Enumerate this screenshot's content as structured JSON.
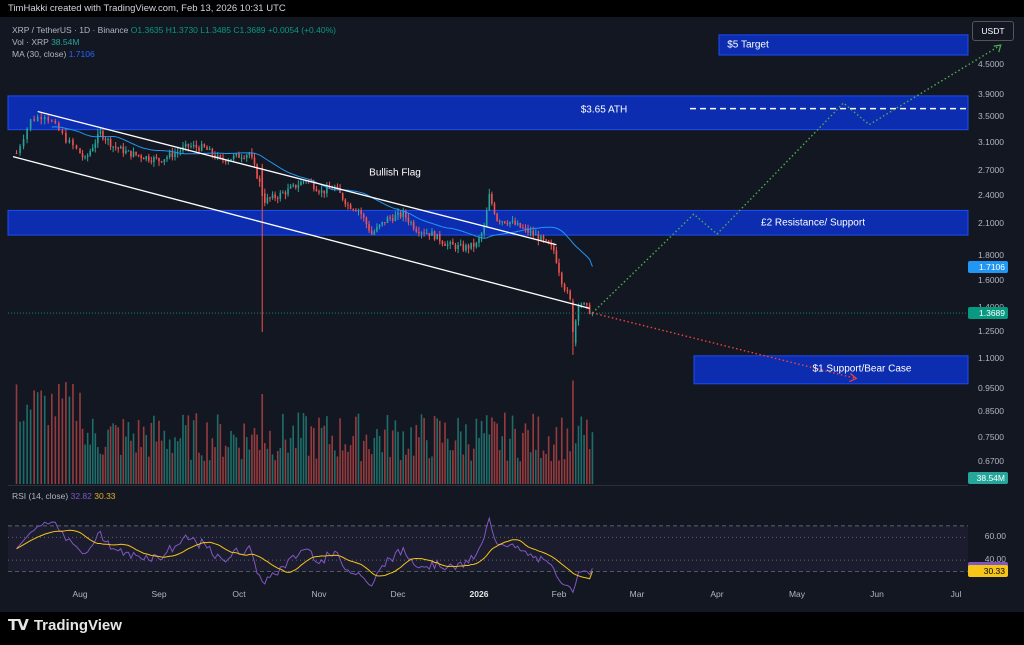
{
  "header": {
    "creator_line": "TimHakki created with TradingView.com, Feb 13, 2026 10:31 UTC"
  },
  "legend": {
    "symbol": "XRP / TetherUS · 1D · Binance",
    "open": "O1.3635",
    "high": "H1.3730",
    "low": "L1.3485",
    "close": "C1.3689",
    "change": "+0.0054 (+0.40%)",
    "vol_label": "Vol · XRP",
    "vol_value": "38.54M",
    "ma_label": "MA (30, close)",
    "ma_value": "1.7106",
    "rsi_label": "RSI (14, close)",
    "rsi_value": "32.82",
    "rsi_ma_value": "30.33"
  },
  "currency_button": "USDT",
  "price_axis": {
    "ticks": [
      "4.5000",
      "3.9000",
      "3.5000",
      "3.1000",
      "2.7000",
      "2.4000",
      "2.1000",
      "1.8000",
      "1.6000",
      "1.4000",
      "1.2500",
      "1.1000",
      "0.9500",
      "0.8500",
      "0.7500",
      "0.6700"
    ],
    "badges": {
      "ma": {
        "value": "1.7106",
        "color": "#2196f3"
      },
      "last": {
        "value": "1.3689",
        "color": "#089981"
      },
      "volume": {
        "value": "38.54M",
        "color": "#26a69a"
      },
      "rsi": {
        "value": "32.82",
        "color": "#7e57c2"
      },
      "rsi_ma": {
        "value": "30.33",
        "color": "#f5c518"
      }
    }
  },
  "rsi_axis": {
    "ticks": [
      "60.00",
      "40.00"
    ]
  },
  "time_axis": {
    "labels": [
      "Aug",
      "Sep",
      "Oct",
      "Nov",
      "Dec",
      "2026",
      "Feb",
      "Mar",
      "Apr",
      "May",
      "Jun",
      "Jul"
    ],
    "bold": "2026"
  },
  "annotations": {
    "target": "$5 Target",
    "ath": "$3.65 ATH",
    "flag": "Bullish Flag",
    "resistance": "£2 Resistance/ Support",
    "support": "$1 Support/Bear Case"
  },
  "colors": {
    "up": "#26a69a",
    "down": "#ef5350",
    "zone": "#0d2fb8",
    "ma": "#2196f3",
    "bull_path": "#4caf50",
    "bear_path": "#f44336",
    "rsi": "#7e57c2",
    "rsi_ma": "#f5c518"
  },
  "footer": {
    "brand": "TradingView"
  },
  "chart_data": {
    "type": "candlestick",
    "symbol": "XRP/USDT",
    "timeframe": "1D",
    "period": [
      "2025-07-14",
      "2026-02-13"
    ],
    "price_range": [
      0.62,
      5.2
    ],
    "log_scale": true,
    "ma_period": 30,
    "last_close": 1.3689,
    "ma_last": 1.7106,
    "rsi_last": 32.82,
    "rsi_ma_last": 30.33,
    "volume_last": "38.54M",
    "ohlc_last": {
      "open": 1.3635,
      "high": 1.373,
      "low": 1.3485,
      "close": 1.3689
    },
    "key_levels": {
      "target": 5.0,
      "ath": 3.65,
      "resistance_support": 2.0,
      "bear_case_support": 1.0
    },
    "close_path": [
      [
        "2025-07-14",
        2.95
      ],
      [
        "2025-07-18",
        3.45
      ],
      [
        "2025-07-22",
        3.55
      ],
      [
        "2025-07-28",
        3.15
      ],
      [
        "2025-08-03",
        2.85
      ],
      [
        "2025-08-09",
        3.25
      ],
      [
        "2025-08-14",
        3.05
      ],
      [
        "2025-08-20",
        2.95
      ],
      [
        "2025-08-26",
        2.9
      ],
      [
        "2025-09-01",
        2.85
      ],
      [
        "2025-09-07",
        2.95
      ],
      [
        "2025-09-12",
        3.05
      ],
      [
        "2025-09-18",
        3.02
      ],
      [
        "2025-09-24",
        2.85
      ],
      [
        "2025-09-30",
        2.9
      ],
      [
        "2025-10-05",
        2.95
      ],
      [
        "2025-10-09",
        2.55
      ],
      [
        "2025-10-11",
        2.35
      ],
      [
        "2025-10-16",
        2.4
      ],
      [
        "2025-10-22",
        2.5
      ],
      [
        "2025-10-27",
        2.6
      ],
      [
        "2025-11-02",
        2.45
      ],
      [
        "2025-11-07",
        2.5
      ],
      [
        "2025-11-12",
        2.3
      ],
      [
        "2025-11-16",
        2.25
      ],
      [
        "2025-11-21",
        2.0
      ],
      [
        "2025-11-27",
        2.15
      ],
      [
        "2025-12-03",
        2.2
      ],
      [
        "2025-12-08",
        2.05
      ],
      [
        "2025-12-14",
        2.0
      ],
      [
        "2025-12-20",
        1.9
      ],
      [
        "2025-12-26",
        1.87
      ],
      [
        "2025-12-31",
        1.9
      ],
      [
        "2026-01-03",
        2.05
      ],
      [
        "2026-01-05",
        2.4
      ],
      [
        "2026-01-08",
        2.15
      ],
      [
        "2026-01-13",
        2.12
      ],
      [
        "2026-01-18",
        2.05
      ],
      [
        "2026-01-24",
        1.97
      ],
      [
        "2026-01-30",
        1.85
      ],
      [
        "2026-02-02",
        1.6
      ],
      [
        "2026-02-05",
        1.45
      ],
      [
        "2026-02-06",
        1.2
      ],
      [
        "2026-02-08",
        1.45
      ],
      [
        "2026-02-13",
        1.3689
      ]
    ],
    "channel": {
      "upper": [
        [
          "2025-07-20",
          3.6
        ],
        [
          "2026-01-31",
          1.9
        ]
      ],
      "lower": [
        [
          "2025-07-13",
          2.9
        ],
        [
          "2026-02-12",
          1.4
        ]
      ]
    },
    "projection_bull": [
      [
        "2026-02-13",
        1.37
      ],
      [
        "2026-03-23",
        2.2
      ],
      [
        "2026-04-01",
        2.0
      ],
      [
        "2026-05-19",
        3.75
      ],
      [
        "2026-05-29",
        3.38
      ],
      [
        "2026-07-18",
        4.95
      ]
    ],
    "projection_bear": [
      [
        "2026-02-13",
        1.37
      ],
      [
        "2026-05-24",
        1.0
      ]
    ],
    "rsi_levels": [
      70,
      60,
      40,
      30
    ],
    "rsi_range": [
      20,
      90
    ]
  }
}
